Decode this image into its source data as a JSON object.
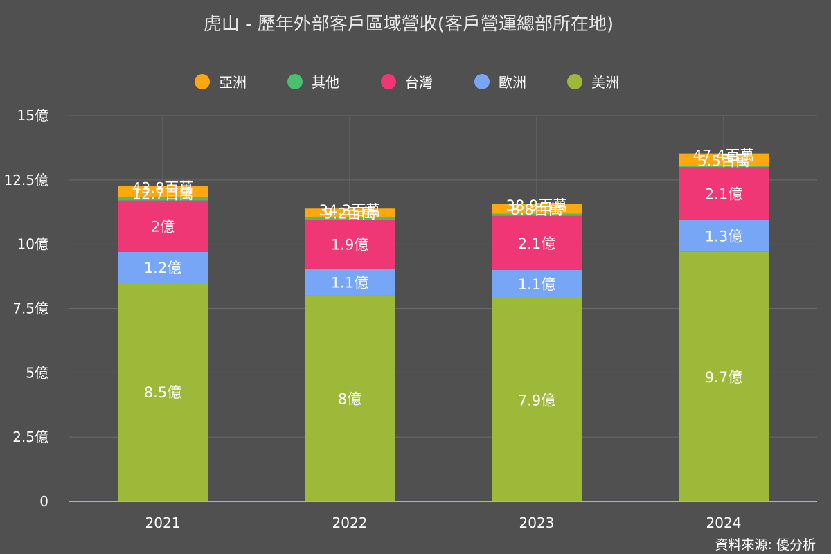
{
  "chart_data": {
    "type": "bar",
    "stacked": true,
    "title": "虎山 - 歷年外部客戶區域營收(客戶營運總部所在地)",
    "categories": [
      "2021",
      "2022",
      "2023",
      "2024"
    ],
    "ylim": [
      0,
      15
    ],
    "yticks": [
      {
        "value": 0,
        "label": "0"
      },
      {
        "value": 2.5,
        "label": "2.5億"
      },
      {
        "value": 5,
        "label": "5億"
      },
      {
        "value": 7.5,
        "label": "7.5億"
      },
      {
        "value": 10,
        "label": "10億"
      },
      {
        "value": 12.5,
        "label": "12.5億"
      },
      {
        "value": 15,
        "label": "15億"
      }
    ],
    "legend": [
      "亞洲",
      "其他",
      "台灣",
      "歐洲",
      "美洲"
    ],
    "legend_position": "top",
    "grid": true,
    "series": [
      {
        "name": "美洲",
        "color": "#9eb93a",
        "values": [
          8.5,
          8.0,
          7.9,
          9.7
        ],
        "labels": [
          "8.5億",
          "8億",
          "7.9億",
          "9.7億"
        ]
      },
      {
        "name": "歐洲",
        "color": "#78a6f7",
        "values": [
          1.2,
          1.05,
          1.1,
          1.25
        ],
        "labels": [
          "1.2億",
          "1.1億",
          "1.1億",
          "1.3億"
        ]
      },
      {
        "name": "台灣",
        "color": "#ef3775",
        "values": [
          2.0,
          1.9,
          2.1,
          2.05
        ],
        "labels": [
          "2億",
          "1.9億",
          "2.1億",
          "2.1億"
        ]
      },
      {
        "name": "其他",
        "color": "#48c06f",
        "values": [
          0.127,
          0.092,
          0.088,
          0.055
        ],
        "labels": [
          "12.7百萬",
          "9.2百萬",
          "8.8百萬",
          "5.5百萬"
        ]
      },
      {
        "name": "亞洲",
        "color": "#ffa70f",
        "values": [
          0.438,
          0.343,
          0.389,
          0.474
        ],
        "labels": [
          "43.8百萬",
          "34.3百萬",
          "38.9百萬",
          "47.4百萬"
        ]
      }
    ]
  },
  "source_text": "資料來源: 優分析"
}
